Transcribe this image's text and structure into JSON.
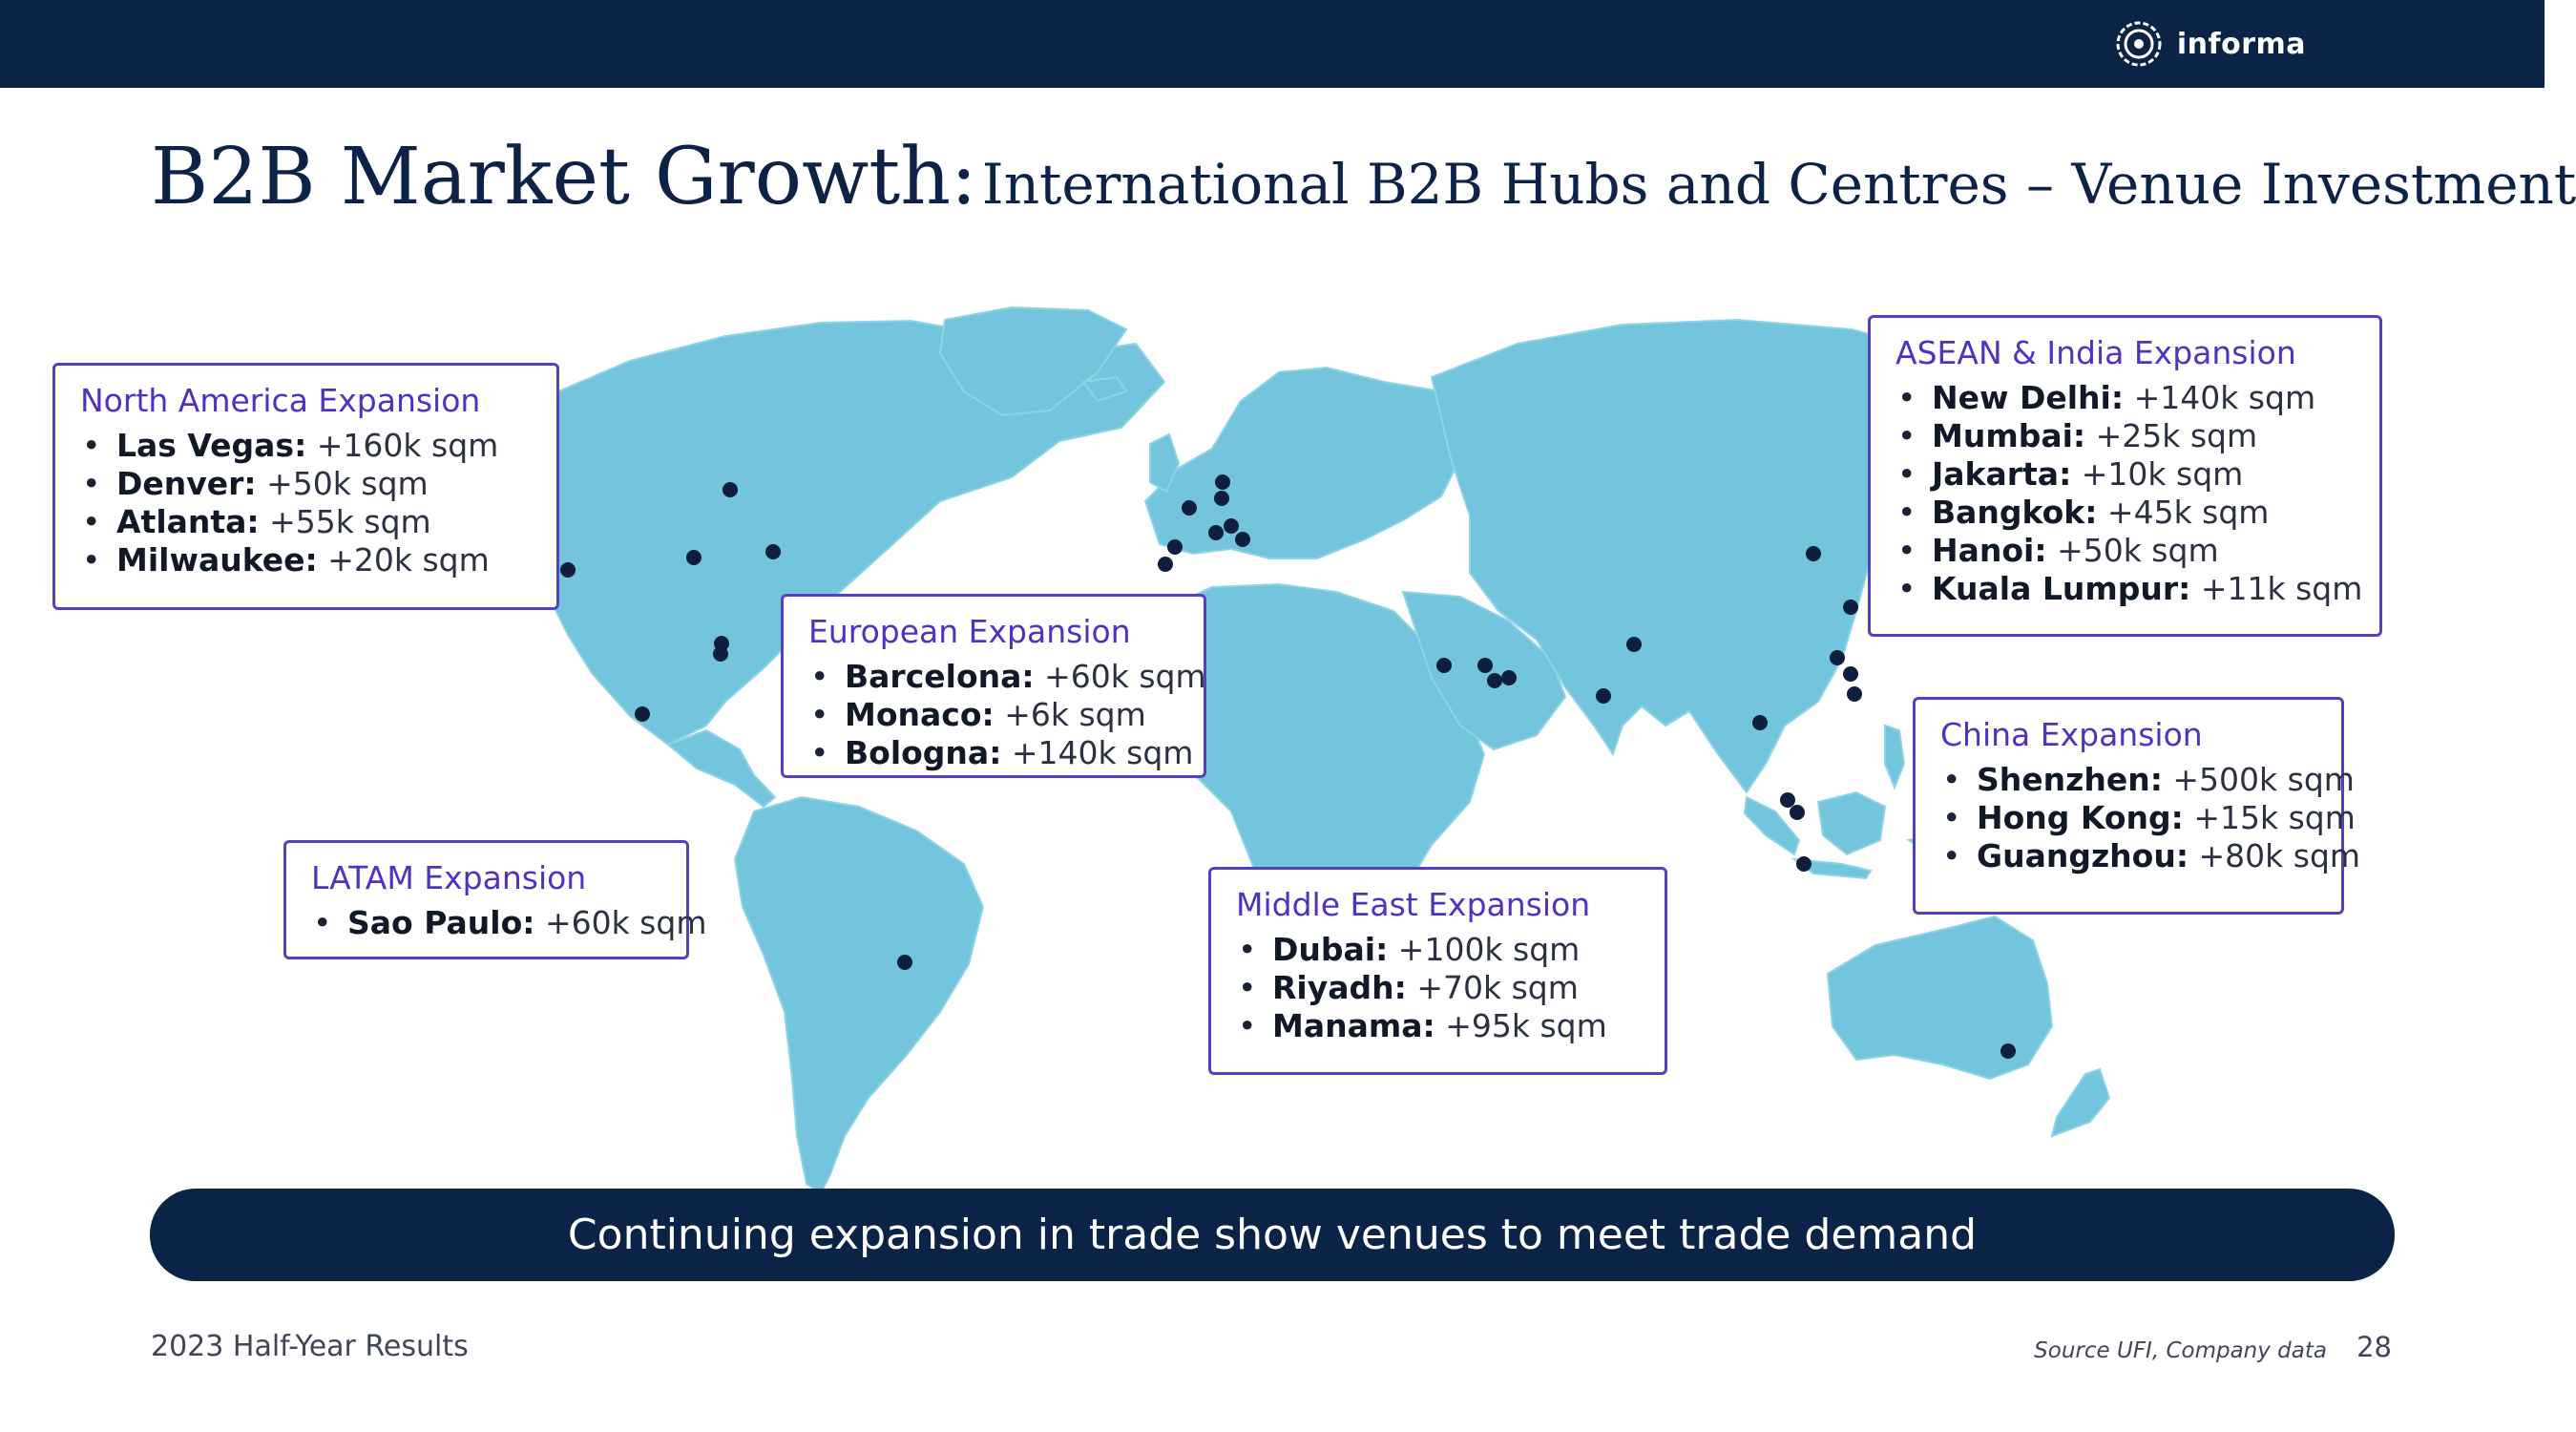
{
  "header": {
    "logo_text": "informa",
    "logo_icon": "informa-logo-icon"
  },
  "title": {
    "main": "B2B Market Growth:",
    "sub": "International B2B Hubs and Centres – Venue Investment"
  },
  "regions": {
    "north_america": {
      "title": "North America Expansion",
      "items": [
        {
          "city": "Las Vegas:",
          "value": "+160k sqm"
        },
        {
          "city": "Denver:",
          "value": " +50k sqm"
        },
        {
          "city": "Atlanta:",
          "value": "+55k sqm"
        },
        {
          "city": "Milwaukee:",
          "value": "+20k sqm"
        }
      ]
    },
    "europe": {
      "title": "European Expansion",
      "items": [
        {
          "city": "Barcelona:",
          "value": "+60k sqm"
        },
        {
          "city": "Monaco:",
          "value": "+6k sqm"
        },
        {
          "city": "Bologna:",
          "value": "+140k sqm"
        }
      ]
    },
    "latam": {
      "title": "LATAM Expansion",
      "items": [
        {
          "city": "Sao Paulo:",
          "value": "+60k sqm"
        }
      ]
    },
    "middle_east": {
      "title": "Middle East Expansion",
      "items": [
        {
          "city": "Dubai:",
          "value": "+100k sqm"
        },
        {
          "city": "Riyadh:",
          "value": "+70k sqm"
        },
        {
          "city": "Manama:",
          "value": "+95k sqm"
        }
      ]
    },
    "asean_india": {
      "title": "ASEAN & India Expansion",
      "items": [
        {
          "city": "New Delhi:",
          "value": "+140k sqm"
        },
        {
          "city": "Mumbai:",
          "value": "+25k sqm"
        },
        {
          "city": "Jakarta:",
          "value": "+10k sqm"
        },
        {
          "city": "Bangkok:",
          "value": "+45k sqm"
        },
        {
          "city": "Hanoi:",
          "value": "+50k sqm"
        },
        {
          "city": "Kuala Lumpur:",
          "value": "+11k sqm"
        }
      ]
    },
    "china": {
      "title": "China Expansion",
      "items": [
        {
          "city": "Shenzhen:",
          "value": "+500k sqm"
        },
        {
          "city": "Hong Kong:",
          "value": "+15k sqm"
        },
        {
          "city": "Guangzhou:",
          "value": "+80k sqm"
        }
      ]
    }
  },
  "banner": "Continuing expansion in trade show venues to meet trade demand",
  "footer": {
    "left": "2023 Half-Year Results",
    "source": "Source UFI, Company data",
    "page": "28"
  },
  "colors": {
    "navy": "#0b2346",
    "map": "#72c5dc",
    "accent": "#5540c2",
    "marker": "#0d1f3c"
  }
}
